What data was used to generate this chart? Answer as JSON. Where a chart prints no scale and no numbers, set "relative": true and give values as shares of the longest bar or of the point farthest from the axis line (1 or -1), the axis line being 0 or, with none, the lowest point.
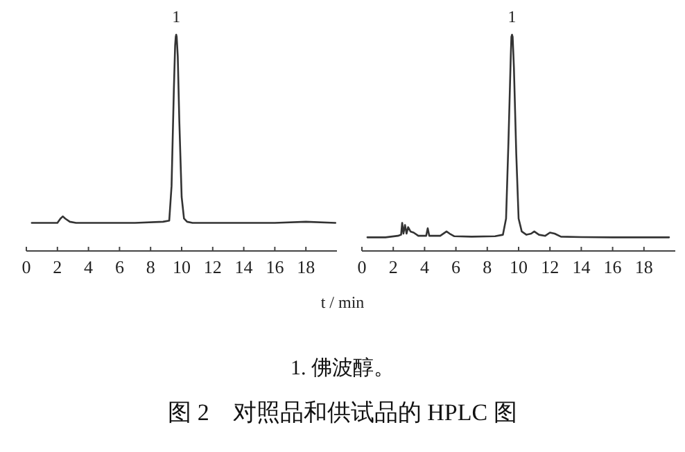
{
  "chart_data": [
    {
      "type": "line",
      "relative": true,
      "color": "#333333",
      "line_style": "solid",
      "marker": "none",
      "x": [
        0.35,
        1.5,
        2.0,
        2.2,
        2.35,
        2.5,
        2.8,
        3.2,
        5,
        7,
        8.8,
        9.2,
        9.35,
        9.5,
        9.58,
        9.62,
        9.65,
        9.68,
        9.75,
        9.85,
        10.0,
        10.15,
        10.35,
        10.7,
        12,
        14,
        16,
        18,
        19.9
      ],
      "values": [
        0.13,
        0.13,
        0.13,
        0.15,
        0.16,
        0.15,
        0.135,
        0.13,
        0.13,
        0.13,
        0.135,
        0.14,
        0.3,
        0.75,
        0.95,
        0.99,
        1.0,
        0.99,
        0.9,
        0.6,
        0.25,
        0.15,
        0.135,
        0.13,
        0.13,
        0.13,
        0.13,
        0.135,
        0.13
      ],
      "xlim": [
        0,
        20
      ],
      "xticks": [
        0,
        2,
        4,
        6,
        8,
        10,
        12,
        14,
        16,
        18
      ],
      "annotations": [
        {
          "text": "1",
          "x": 9.65,
          "y": 1.0
        },
        "1. 佛波醇。"
      ],
      "title": "图 2　对照品和供试品的 HPLC 图"
    },
    {
      "type": "line",
      "relative": true,
      "color": "#333333",
      "line_style": "solid",
      "marker": "none",
      "x": [
        0.35,
        1.5,
        2.3,
        2.5,
        2.57,
        2.65,
        2.75,
        2.85,
        2.95,
        3.1,
        3.3,
        3.6,
        4.1,
        4.2,
        4.3,
        5.0,
        5.4,
        5.6,
        5.9,
        7,
        8.5,
        9.0,
        9.2,
        9.35,
        9.5,
        9.54,
        9.58,
        9.62,
        9.7,
        9.85,
        10.0,
        10.2,
        10.5,
        10.8,
        11.0,
        11.3,
        11.7,
        12.0,
        12.3,
        12.7,
        14,
        16,
        18,
        19.6
      ],
      "values": [
        0.063,
        0.063,
        0.07,
        0.075,
        0.13,
        0.08,
        0.12,
        0.08,
        0.11,
        0.09,
        0.085,
        0.07,
        0.07,
        0.105,
        0.07,
        0.07,
        0.09,
        0.08,
        0.068,
        0.066,
        0.068,
        0.075,
        0.15,
        0.5,
        0.9,
        0.99,
        1.0,
        0.99,
        0.85,
        0.45,
        0.15,
        0.09,
        0.075,
        0.08,
        0.09,
        0.075,
        0.07,
        0.085,
        0.08,
        0.066,
        0.064,
        0.063,
        0.063,
        0.063
      ],
      "xlim": [
        0,
        20
      ],
      "xticks": [
        0,
        2,
        4,
        6,
        8,
        10,
        12,
        14,
        16,
        18
      ],
      "annotations": [
        {
          "text": "1",
          "x": 9.58,
          "y": 1.0
        }
      ],
      "xlabel": "t / min"
    }
  ]
}
